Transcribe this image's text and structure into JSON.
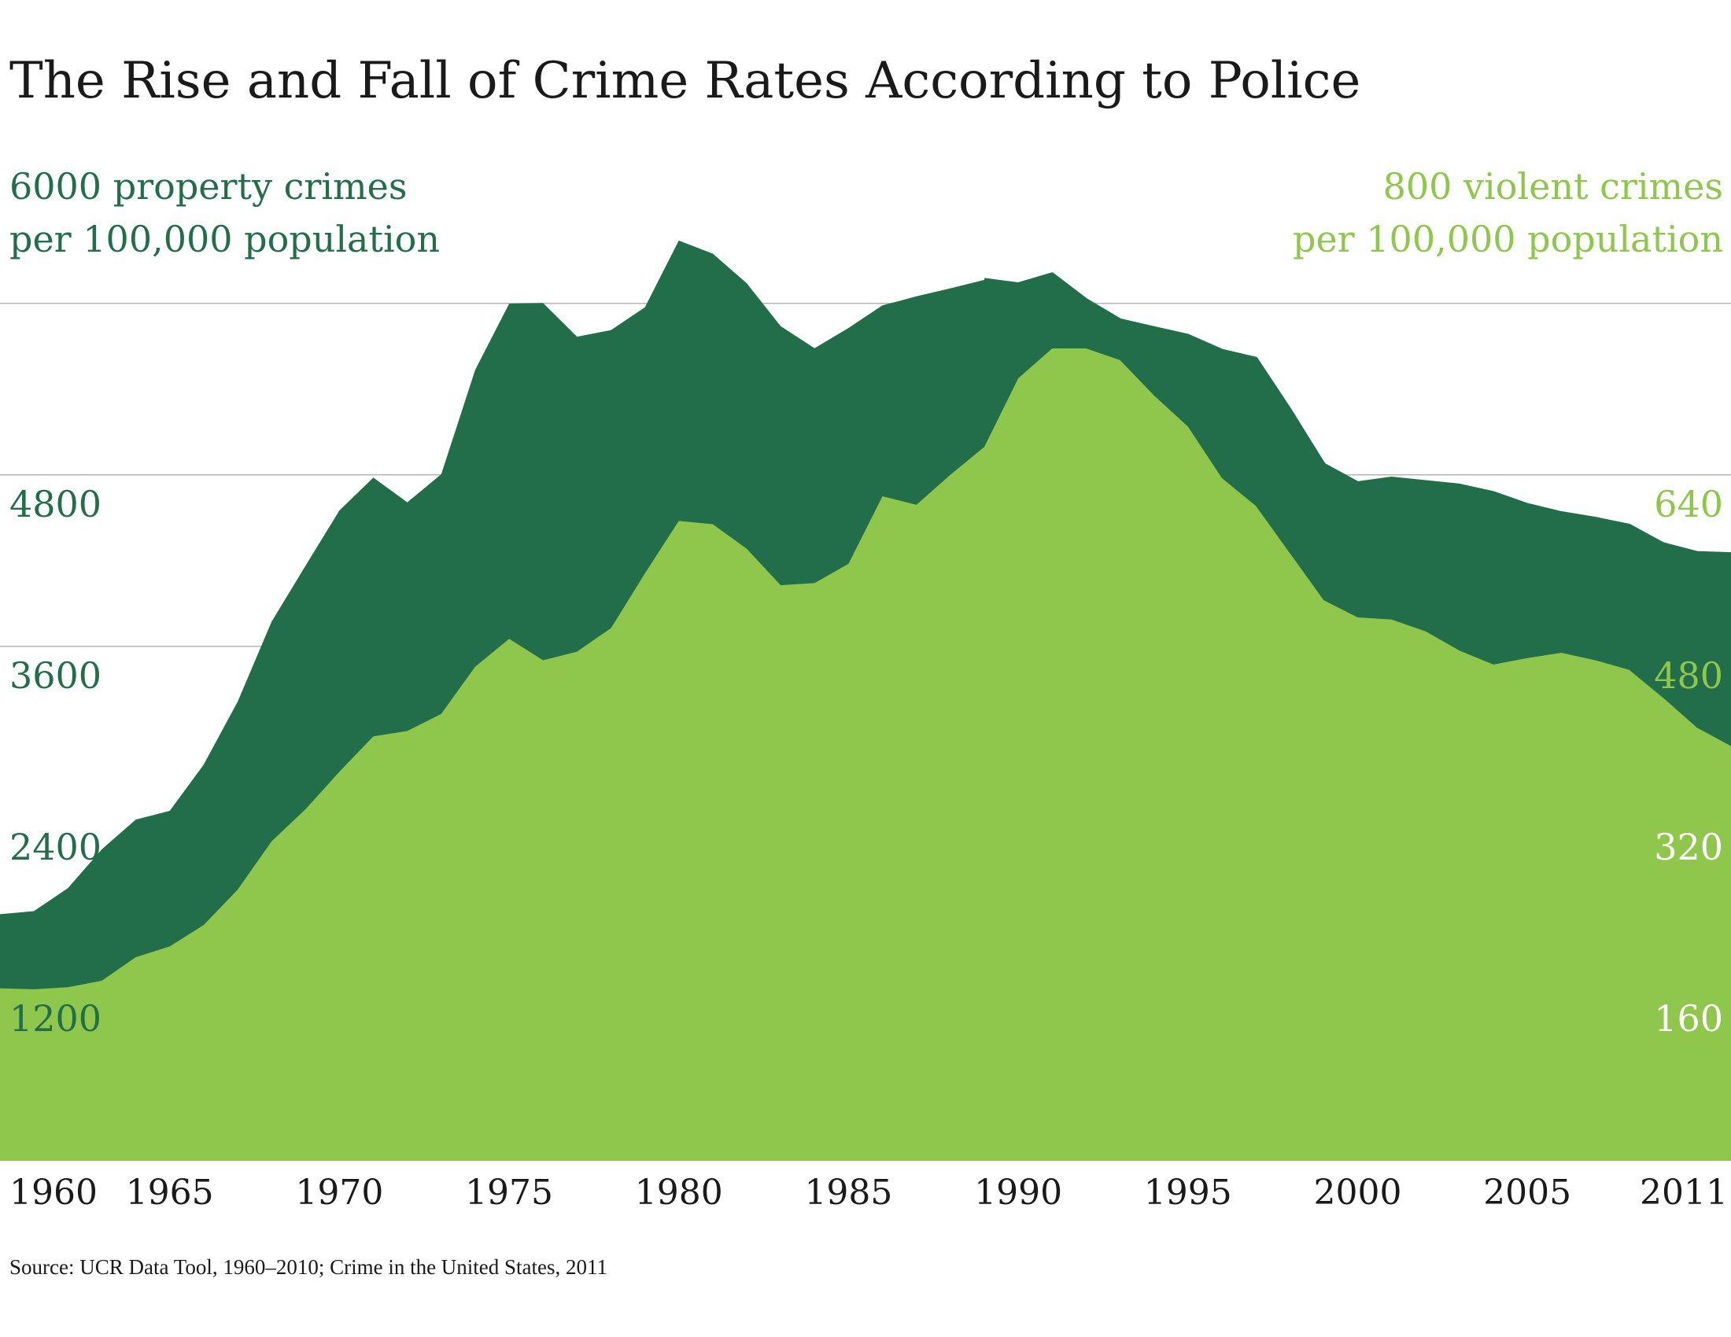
{
  "colors": {
    "property": "#236e4a",
    "violent": "#8ec74b",
    "gridline": "#b5b5b5",
    "text": "#1a1a1a"
  },
  "title": "The Rise and Fall of Crime Rates According to Police",
  "source": "Source: UCR Data Tool, 1960–2010; Crime in the United States, 2011",
  "chart_data": {
    "type": "area",
    "title": "The Rise and Fall of Crime Rates According to Police",
    "x": [
      1960,
      1961,
      1962,
      1963,
      1964,
      1965,
      1966,
      1967,
      1968,
      1969,
      1970,
      1971,
      1972,
      1973,
      1974,
      1975,
      1976,
      1977,
      1978,
      1979,
      1980,
      1981,
      1982,
      1983,
      1984,
      1985,
      1986,
      1987,
      1988,
      1989,
      1990,
      1991,
      1992,
      1993,
      1994,
      1995,
      1996,
      1997,
      1998,
      1999,
      2000,
      2001,
      2002,
      2003,
      2004,
      2005,
      2006,
      2007,
      2008,
      2009,
      2010,
      2011
    ],
    "xticks": [
      "1960",
      "1965",
      "1970",
      "1975",
      "1980",
      "1985",
      "1990",
      "1995",
      "2000",
      "2005",
      "2011"
    ],
    "xlim": [
      1960,
      2011
    ],
    "grid": true,
    "series": [
      {
        "name": "property crimes",
        "axis": "left",
        "style": "area-then-line",
        "values": [
          1726,
          1747,
          1908,
          2180,
          2388,
          2449,
          2772,
          3212,
          3772,
          4163,
          4551,
          4781,
          4608,
          4804,
          5534,
          5998,
          6003,
          5767,
          5813,
          5972,
          6439,
          6348,
          6141,
          5840,
          5686,
          5828,
          5986,
          6049,
          6105,
          6164,
          6133,
          6203,
          6022,
          5881,
          5826,
          5773,
          5668,
          5612,
          5254,
          4871,
          4741,
          4774,
          4749,
          4725,
          4672,
          4589,
          4532,
          4493,
          4444,
          4315,
          4253,
          4245
        ],
        "legend_value": "6000",
        "legend_line1": "property crimes",
        "legend_line2": "per 100,000 population",
        "ticks": [
          "6000",
          "4800",
          "3600",
          "2400",
          "1200"
        ]
      },
      {
        "name": "violent crimes",
        "axis": "right",
        "style": "area",
        "values": [
          161,
          160,
          162,
          168,
          190,
          200,
          220,
          253,
          298,
          328,
          363,
          396,
          401,
          417,
          461,
          487,
          467,
          475,
          497,
          548,
          597,
          594,
          571,
          537,
          539,
          557,
          620,
          612,
          640,
          666,
          730,
          758,
          758,
          747,
          714,
          685,
          637,
          611,
          567,
          523,
          507,
          505,
          494,
          476,
          463,
          469,
          474,
          467,
          458,
          432,
          404,
          387
        ],
        "legend_value": "800",
        "legend_line1": "violent crimes",
        "legend_line2": "per 100,000 population",
        "ticks": [
          "640",
          "480",
          "320",
          "160"
        ]
      }
    ],
    "left_axis": {
      "ticks": [
        1200,
        2400,
        3600,
        4800,
        6000
      ],
      "ylim": [
        0,
        7000
      ]
    },
    "right_axis": {
      "ticks": [
        160,
        320,
        480,
        640,
        800
      ],
      "ylim": [
        0,
        933.33
      ]
    }
  }
}
